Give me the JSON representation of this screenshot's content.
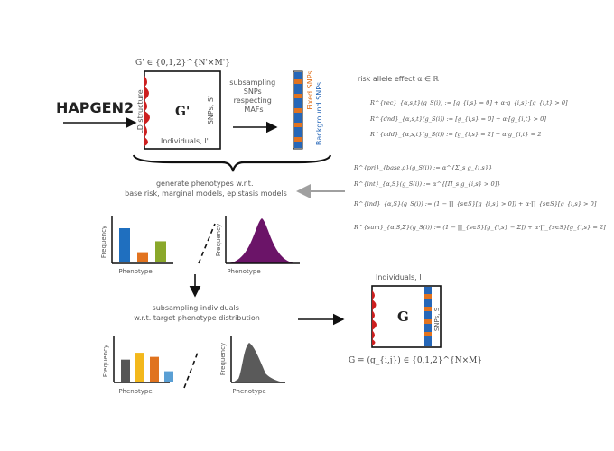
{
  "top": {
    "tool_name": "HAPGEN2",
    "matrix_def": "G' ∈ {0,1,2}^{N'×M'}",
    "matrix_symbol": "G'",
    "ld_label": "LD structure",
    "snps_label": "SNPs, S'",
    "individuals_label": "Individuals, I'",
    "subsample_text": [
      "subsampling",
      "SNPs",
      "respecting",
      "MAFs"
    ],
    "fixed_label": "Fixed SNPs",
    "background_label": "Background SNPs"
  },
  "effects": {
    "title": "risk allele effect α ∈ ℝ",
    "formulas": [
      "R^{rec}_{α,s,t}(g_S(i)) := [g_{i,s} = 0] + α·g_{i,s}·[g_{i,t} > 0]",
      "R^{dnd}_{α,s,t}(g_S(i)) := [g_{i,s} = 0] + α·[g_{i,t} > 0]",
      "R^{add}_{α,s,t}(g_S(i)) := [g_{i,s} = 2] + α·g_{i,t} = 2",
      "R^{pri}_{base,ρ}(g_S(i)) := α^{Σ_s g_{i,s}}",
      "R^{int}_{α,S}(g_S(i)) := α^{[Π_s g_{i,s} > 0]}",
      "R^{ind}_{α,S}(g_S(i)) := (1 − ∏_{s∈S}[g_{i,s} > 0]) + α·∏_{s∈S}[g_{i,s} > 0]",
      "R^{sum}_{α,S,Σ}(g_S(i)) := (1 − ∏_{s∈S}[g_{i,s} − Σ]) + α·∏_{s∈S}[g_{i,s} = 2]"
    ]
  },
  "phenotype_gen": {
    "text_line1": "generate phenotypes w.r.t.",
    "text_line2": "base risk, marginal models, epistasis models",
    "bar_ylabel": "Frequency",
    "bar_xlabel": "Phenotype",
    "bar_values": [
      1.0,
      0.3,
      0.62
    ],
    "bar_colors": [
      "#1f6fbf",
      "#e2731f",
      "#8aa82a"
    ],
    "dist_ylabel": "Frequency",
    "dist_xlabel": "Phenotype",
    "dist_color": "#6b1468"
  },
  "subsample_ind": {
    "text_line1": "subsampling individuals",
    "text_line2": "w.r.t. target phenotype distribution",
    "bar_ylabel": "Frequency",
    "bar_xlabel": "Phenotype",
    "bar_values": [
      0.64,
      0.84,
      0.72,
      0.3
    ],
    "bar_colors": [
      "#555555",
      "#f3b81c",
      "#e0731f",
      "#5a9fd4"
    ],
    "dist_ylabel": "Frequency",
    "dist_xlabel": "Phenotype",
    "dist_color": "#5a5a5a"
  },
  "result": {
    "individuals_label": "Individuals, I",
    "matrix_symbol": "G",
    "snps_label": "SNPs, S",
    "matrix_def": "G = (g_{i,j}) ∈ {0,1,2}^{N×M}"
  },
  "colors": {
    "ld_red": "#cc1f1f",
    "stripe_blue": "#2667b8",
    "stripe_orange": "#e2731f",
    "arrow_gray": "#a0a0a0"
  }
}
